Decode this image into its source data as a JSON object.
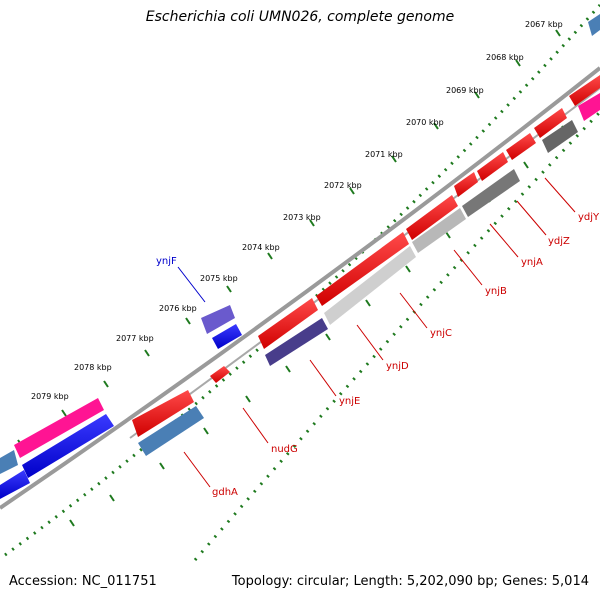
{
  "title": "Escherichia coli UMN026, complete genome",
  "footer": {
    "accession": "Accession: NC_011751",
    "summary": "Topology: circular; Length: 5,202,090 bp; Genes: 5,014"
  },
  "colors": {
    "tick": "#1f7a1f",
    "backbone": "#8a8a8a",
    "label_red": "#cc0000",
    "label_blue": "#0000cc"
  },
  "scale_labels": [
    "2067 kbp",
    "2068 kbp",
    "2069 kbp",
    "2070 kbp",
    "2071 kbp",
    "2072 kbp",
    "2073 kbp",
    "2074 kbp",
    "2075 kbp",
    "2076 kbp",
    "2077 kbp",
    "2078 kbp",
    "2079 kbp"
  ],
  "genes": [
    {
      "name": "ydjY",
      "color": "#cc0000"
    },
    {
      "name": "ydjZ",
      "color": "#cc0000"
    },
    {
      "name": "ynjA",
      "color": "#cc0000"
    },
    {
      "name": "ynjB",
      "color": "#cc0000"
    },
    {
      "name": "ynjC",
      "color": "#cc0000"
    },
    {
      "name": "ynjD",
      "color": "#cc0000"
    },
    {
      "name": "ynjE",
      "color": "#cc0000"
    },
    {
      "name": "nudG",
      "color": "#cc0000"
    },
    {
      "name": "gdhA",
      "color": "#cc0000"
    },
    {
      "name": "ynjF",
      "color": "#0000cc"
    }
  ]
}
